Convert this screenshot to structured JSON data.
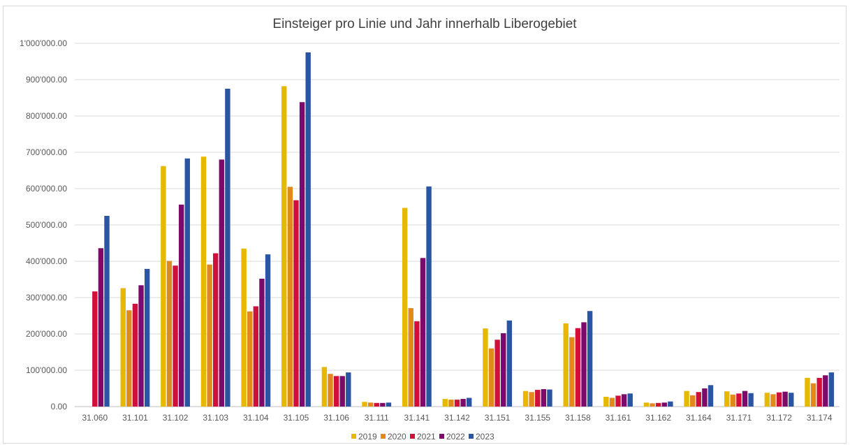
{
  "chart_data": {
    "type": "bar",
    "title": "Einsteiger pro Linie und Jahr innerhalb Liberogebiet",
    "xlabel": "",
    "ylabel": "",
    "ylim": [
      0,
      1000000
    ],
    "y_ticks": [
      0,
      100000,
      200000,
      300000,
      400000,
      500000,
      600000,
      700000,
      800000,
      900000,
      1000000
    ],
    "y_tick_labels": [
      "0.00",
      "100'000.00",
      "200'000.00",
      "300'000.00",
      "400'000.00",
      "500'000.00",
      "600'000.00",
      "700'000.00",
      "800'000.00",
      "900'000.00",
      "1'000'000.00"
    ],
    "grid": true,
    "legend_position": "bottom",
    "categories": [
      "31.060",
      "31.101",
      "31.102",
      "31.103",
      "31.104",
      "31.105",
      "31.106",
      "31.111",
      "31.141",
      "31.142",
      "31.151",
      "31.155",
      "31.158",
      "31.161",
      "31.162",
      "31.164",
      "31.171",
      "31.172",
      "31.174"
    ],
    "series": [
      {
        "name": "2019",
        "color": "#E6B800",
        "values": [
          0,
          326000,
          662000,
          688000,
          435000,
          882000,
          109000,
          13000,
          547000,
          21000,
          215000,
          43000,
          229000,
          27000,
          11000,
          43000,
          42000,
          38000,
          79000
        ]
      },
      {
        "name": "2020",
        "color": "#E08A1E",
        "values": [
          0,
          265000,
          401000,
          391000,
          262000,
          605000,
          90000,
          11000,
          271000,
          19000,
          160000,
          40000,
          191000,
          24000,
          9000,
          31000,
          33000,
          34000,
          64000
        ]
      },
      {
        "name": "2021",
        "color": "#D0103A",
        "values": [
          317000,
          283000,
          388000,
          422000,
          276000,
          568000,
          84000,
          10000,
          235000,
          19000,
          184000,
          46000,
          216000,
          30000,
          10000,
          40000,
          36000,
          39000,
          79000
        ]
      },
      {
        "name": "2022",
        "color": "#7B0A6B",
        "values": [
          436000,
          334000,
          556000,
          680000,
          352000,
          838000,
          84000,
          10000,
          409000,
          21000,
          202000,
          48000,
          232000,
          34000,
          11000,
          50000,
          43000,
          41000,
          86000
        ]
      },
      {
        "name": "2023",
        "color": "#2A55A3",
        "values": [
          525000,
          379000,
          683000,
          875000,
          419000,
          975000,
          94000,
          11000,
          606000,
          24000,
          237000,
          47000,
          263000,
          36000,
          14000,
          59000,
          37000,
          38000,
          94000
        ]
      }
    ]
  }
}
